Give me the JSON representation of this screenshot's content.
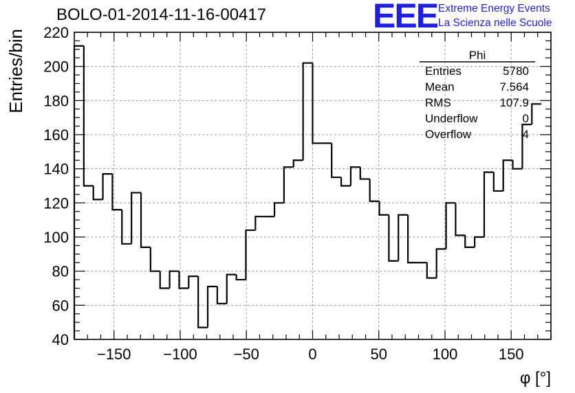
{
  "title": "BOLO-01-2014-11-16-00417",
  "logo": {
    "mark": "EEE",
    "line1": "Extreme Energy Events",
    "line2": "La Scienza nelle Scuole",
    "color": "#1f1fe0"
  },
  "stats_box": {
    "title": "Phi",
    "rows": [
      {
        "label": "Entries",
        "value": "5780"
      },
      {
        "label": "Mean",
        "value": "7.564"
      },
      {
        "label": "RMS",
        "value": "107.9"
      },
      {
        "label": "Underflow",
        "value": "0"
      },
      {
        "label": "Overflow",
        "value": "4"
      }
    ]
  },
  "chart_data": {
    "type": "bar",
    "style": "step-histogram",
    "xlabel": "φ [°]",
    "ylabel": "Entries/bin",
    "xlim": [
      -180,
      180
    ],
    "ylim": [
      40,
      220
    ],
    "bin_width": 7.2,
    "xticks": [
      -150,
      -100,
      -50,
      0,
      50,
      100,
      150
    ],
    "xtick_labels": [
      "−150",
      "−100",
      "−50",
      "0",
      "50",
      "100",
      "150"
    ],
    "yticks": [
      40,
      60,
      80,
      100,
      120,
      140,
      160,
      180,
      200,
      220
    ],
    "ytick_labels": [
      "40",
      "60",
      "80",
      "100",
      "120",
      "140",
      "160",
      "180",
      "200",
      "220"
    ],
    "grid": true,
    "values": [
      212,
      130,
      122,
      137,
      116,
      96,
      126,
      94,
      80,
      70,
      80,
      70,
      77,
      47,
      71,
      61,
      78,
      75,
      104,
      112,
      112,
      120,
      141,
      145,
      202,
      155,
      155,
      135,
      130,
      141,
      134,
      121,
      113,
      86,
      113,
      85,
      85,
      76,
      93,
      120,
      101,
      94,
      100,
      138,
      127,
      145,
      140,
      166,
      178
    ]
  }
}
